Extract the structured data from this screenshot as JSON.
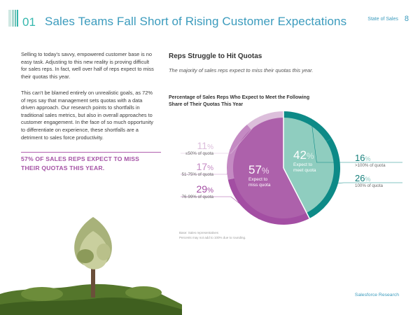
{
  "header": {
    "section_number": "01",
    "title": "Sales Teams Fall Short of Rising Customer Expectations",
    "section_label": "State of Sales",
    "page_number": "8"
  },
  "body": {
    "paragraph1": "Selling to today's savvy, empowered customer base is no easy task. Adjusting to this new reality is proving difficult for sales reps. In fact, well over half of reps expect to miss their quotas this year.",
    "paragraph2": "This can't be blamed entirely on unrealistic goals, as 72% of reps say that management sets quotas with a data driven approach. Our research points to shortfalls in traditional sales metrics, but also in overall approaches to customer engagement. In the face of so much opportunity to differentiate on experience, these shortfalls are a detriment to sales force productivity.",
    "callout": "57% OF SALES REPS EXPECT TO MISS THEIR QUOTAS THIS YEAR."
  },
  "chart_section": {
    "heading": "Reps Struggle to Hit Quotas",
    "subheading": "The majority of sales reps expect to miss their quotas this year.",
    "chart_title": "Percentage of Sales Reps Who Expect to Meet the Following Share of Their Quotas This Year",
    "note_line1": "Base: Sales representatives",
    "note_line2": "Percents may not add to 100% due to rounding."
  },
  "chart_data": {
    "type": "pie",
    "title": "Percentage of Sales Reps Who Expect to Meet the Following Share of Their Quotas This Year",
    "groups": [
      {
        "name": "Expect to meet quota",
        "total": 42,
        "total_label": "42",
        "caption_line1": "Expect to",
        "caption_line2": "meet quota"
      },
      {
        "name": "Expect to miss quota",
        "total": 57,
        "total_label": "57",
        "caption_line1": "Expect to",
        "caption_line2": "miss quota"
      }
    ],
    "slices": [
      {
        "label": ">100% of quota",
        "value": 16,
        "group": "meet",
        "display": "16"
      },
      {
        "label": "100% of quota",
        "value": 26,
        "group": "meet",
        "display": "26"
      },
      {
        "label": "76-99% of quota",
        "value": 29,
        "group": "miss",
        "display": "29"
      },
      {
        "label": "51-75% of quota",
        "value": 17,
        "group": "miss",
        "display": "17"
      },
      {
        "label": "≤50% of quota",
        "value": 11,
        "group": "miss",
        "display": "11"
      }
    ],
    "percent_sign": "%",
    "colors": {
      "meet_inner": "#8fcdbf",
      "miss_inner": "#ad61ab",
      "ring_gt100": "#0d8a87",
      "ring_100": "#0d8a87",
      "ring_76_99": "#a34ea3",
      "ring_51_75": "#c48ac3",
      "ring_le50": "#dcbedb"
    }
  },
  "footer": {
    "text": "Salesforce Research"
  }
}
